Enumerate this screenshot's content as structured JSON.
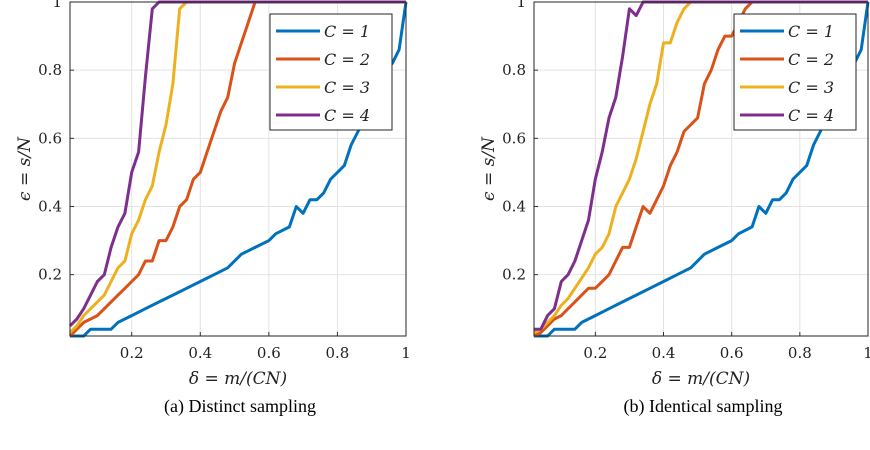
{
  "chart_data": [
    {
      "type": "line",
      "caption": "(a) Distinct sampling",
      "xlabel": "δ = m/(CN)",
      "ylabel": "ϵ = s/N",
      "xlim": [
        0.02,
        1.0
      ],
      "ylim": [
        0.02,
        1.0
      ],
      "xticks": [
        "0.2",
        "0.4",
        "0.6",
        "0.8",
        "1"
      ],
      "yticks": [
        "0.2",
        "0.4",
        "0.6",
        "0.8",
        "1"
      ],
      "grid": true,
      "legend_position": "top-right",
      "series": [
        {
          "name": "C = 1",
          "color": "#0072BD",
          "x": [
            0.02,
            0.06,
            0.08,
            0.14,
            0.16,
            0.2,
            0.24,
            0.28,
            0.32,
            0.36,
            0.4,
            0.44,
            0.48,
            0.52,
            0.56,
            0.6,
            0.62,
            0.66,
            0.68,
            0.7,
            0.72,
            0.74,
            0.76,
            0.78,
            0.8,
            0.82,
            0.84,
            0.86,
            0.88,
            0.9,
            0.92,
            0.94,
            0.96,
            0.98,
            1.0
          ],
          "y": [
            0.02,
            0.02,
            0.04,
            0.04,
            0.06,
            0.08,
            0.1,
            0.12,
            0.14,
            0.16,
            0.18,
            0.2,
            0.22,
            0.26,
            0.28,
            0.3,
            0.32,
            0.34,
            0.4,
            0.38,
            0.42,
            0.42,
            0.44,
            0.48,
            0.5,
            0.52,
            0.58,
            0.62,
            0.66,
            0.72,
            0.76,
            0.8,
            0.82,
            0.86,
            1.0
          ]
        },
        {
          "name": "C = 2",
          "color": "#D95319",
          "x": [
            0.02,
            0.04,
            0.06,
            0.08,
            0.1,
            0.12,
            0.14,
            0.16,
            0.18,
            0.2,
            0.22,
            0.24,
            0.26,
            0.28,
            0.3,
            0.32,
            0.34,
            0.36,
            0.38,
            0.4,
            0.42,
            0.44,
            0.46,
            0.48,
            0.5,
            0.52,
            0.54,
            0.56,
            0.58
          ],
          "y": [
            0.02,
            0.04,
            0.06,
            0.07,
            0.08,
            0.1,
            0.12,
            0.14,
            0.16,
            0.18,
            0.2,
            0.24,
            0.24,
            0.3,
            0.3,
            0.34,
            0.4,
            0.42,
            0.48,
            0.5,
            0.56,
            0.62,
            0.68,
            0.72,
            0.82,
            0.88,
            0.94,
            1.0,
            1.0
          ]
        },
        {
          "name": "C = 3",
          "color": "#EDB120",
          "x": [
            0.02,
            0.04,
            0.06,
            0.08,
            0.1,
            0.12,
            0.14,
            0.16,
            0.18,
            0.2,
            0.22,
            0.24,
            0.26,
            0.28,
            0.3,
            0.32,
            0.34,
            0.36
          ],
          "y": [
            0.03,
            0.05,
            0.08,
            0.1,
            0.12,
            0.14,
            0.18,
            0.22,
            0.24,
            0.32,
            0.36,
            0.42,
            0.46,
            0.56,
            0.64,
            0.76,
            0.98,
            1.0
          ]
        },
        {
          "name": "C = 4",
          "color": "#7E2F8E",
          "x": [
            0.02,
            0.04,
            0.06,
            0.08,
            0.1,
            0.12,
            0.14,
            0.16,
            0.18,
            0.2,
            0.22,
            0.24,
            0.26,
            0.28,
            1.0
          ],
          "y": [
            0.05,
            0.07,
            0.1,
            0.14,
            0.18,
            0.2,
            0.28,
            0.34,
            0.38,
            0.5,
            0.56,
            0.78,
            0.98,
            1.0,
            1.0
          ]
        }
      ]
    },
    {
      "type": "line",
      "caption": "(b) Identical sampling",
      "xlabel": "δ = m/(CN)",
      "ylabel": "ϵ = s/N",
      "xlim": [
        0.02,
        1.0
      ],
      "ylim": [
        0.02,
        1.0
      ],
      "xticks": [
        "0.2",
        "0.4",
        "0.6",
        "0.8",
        "1"
      ],
      "yticks": [
        "0.2",
        "0.4",
        "0.6",
        "0.8",
        "1"
      ],
      "grid": true,
      "legend_position": "top-right",
      "series": [
        {
          "name": "C = 1",
          "color": "#0072BD",
          "x": [
            0.02,
            0.06,
            0.08,
            0.14,
            0.16,
            0.2,
            0.24,
            0.28,
            0.32,
            0.36,
            0.4,
            0.44,
            0.48,
            0.52,
            0.56,
            0.6,
            0.62,
            0.66,
            0.68,
            0.7,
            0.72,
            0.74,
            0.76,
            0.78,
            0.8,
            0.82,
            0.84,
            0.86,
            0.88,
            0.9,
            0.92,
            0.94,
            0.96,
            0.98,
            1.0
          ],
          "y": [
            0.02,
            0.02,
            0.04,
            0.04,
            0.06,
            0.08,
            0.1,
            0.12,
            0.14,
            0.16,
            0.18,
            0.2,
            0.22,
            0.26,
            0.28,
            0.3,
            0.32,
            0.34,
            0.4,
            0.38,
            0.42,
            0.42,
            0.44,
            0.48,
            0.5,
            0.52,
            0.58,
            0.62,
            0.66,
            0.72,
            0.76,
            0.8,
            0.82,
            0.86,
            1.0
          ]
        },
        {
          "name": "C = 2",
          "color": "#D95319",
          "x": [
            0.02,
            0.04,
            0.06,
            0.08,
            0.1,
            0.12,
            0.14,
            0.16,
            0.18,
            0.2,
            0.22,
            0.24,
            0.26,
            0.28,
            0.3,
            0.32,
            0.34,
            0.36,
            0.38,
            0.4,
            0.42,
            0.44,
            0.46,
            0.48,
            0.5,
            0.52,
            0.54,
            0.56,
            0.58,
            0.6,
            0.62,
            0.64,
            0.66,
            0.68
          ],
          "y": [
            0.02,
            0.03,
            0.05,
            0.07,
            0.08,
            0.1,
            0.12,
            0.14,
            0.16,
            0.16,
            0.18,
            0.2,
            0.24,
            0.28,
            0.28,
            0.34,
            0.4,
            0.38,
            0.42,
            0.46,
            0.52,
            0.56,
            0.62,
            0.64,
            0.66,
            0.76,
            0.8,
            0.86,
            0.9,
            0.9,
            0.94,
            0.98,
            1.0,
            1.0
          ]
        },
        {
          "name": "C = 3",
          "color": "#EDB120",
          "x": [
            0.02,
            0.04,
            0.06,
            0.08,
            0.1,
            0.12,
            0.14,
            0.16,
            0.18,
            0.2,
            0.22,
            0.24,
            0.26,
            0.28,
            0.3,
            0.32,
            0.34,
            0.36,
            0.38,
            0.4,
            0.42,
            0.44,
            0.46,
            0.48
          ],
          "y": [
            0.03,
            0.04,
            0.06,
            0.08,
            0.11,
            0.13,
            0.16,
            0.19,
            0.22,
            0.26,
            0.28,
            0.32,
            0.4,
            0.44,
            0.48,
            0.54,
            0.62,
            0.7,
            0.76,
            0.88,
            0.88,
            0.94,
            0.98,
            1.0
          ]
        },
        {
          "name": "C = 4",
          "color": "#7E2F8E",
          "x": [
            0.02,
            0.04,
            0.06,
            0.08,
            0.1,
            0.12,
            0.14,
            0.16,
            0.18,
            0.2,
            0.22,
            0.24,
            0.26,
            0.28,
            0.3,
            0.32,
            0.34,
            0.36,
            1.0
          ],
          "y": [
            0.04,
            0.04,
            0.08,
            0.1,
            0.18,
            0.2,
            0.24,
            0.3,
            0.36,
            0.48,
            0.56,
            0.66,
            0.72,
            0.84,
            0.98,
            0.96,
            1.0,
            1.0,
            1.0
          ]
        }
      ]
    }
  ]
}
